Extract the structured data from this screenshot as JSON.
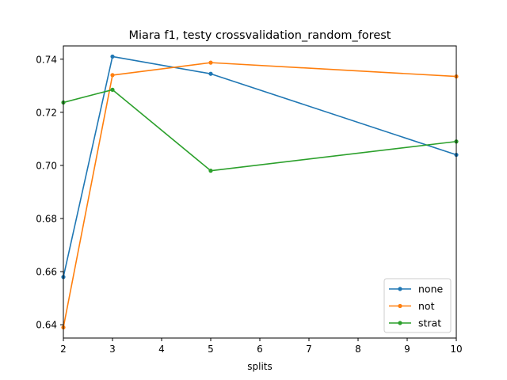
{
  "chart_data": {
    "type": "line",
    "title": "Miara f1, testy crossvalidation_random_forest",
    "xlabel": "splits",
    "ylabel": "",
    "xlim": [
      2,
      10
    ],
    "ylim": [
      0.635,
      0.745
    ],
    "xticks": [
      2,
      3,
      4,
      5,
      6,
      7,
      8,
      9,
      10
    ],
    "yticks": [
      0.64,
      0.66,
      0.68,
      0.7,
      0.72,
      0.74
    ],
    "ytick_labels": [
      "0.64",
      "0.66",
      "0.68",
      "0.70",
      "0.72",
      "0.74"
    ],
    "x": [
      2,
      3,
      5,
      10
    ],
    "legend_position": "lower-right",
    "grid": false,
    "series": [
      {
        "name": "none",
        "color": "#1f77b4",
        "values": [
          0.658,
          0.741,
          0.7345,
          0.704
        ]
      },
      {
        "name": "not",
        "color": "#ff7f0e",
        "values": [
          0.639,
          0.734,
          0.7387,
          0.7335
        ]
      },
      {
        "name": "strat",
        "color": "#2ca02c",
        "values": [
          0.7237,
          0.7285,
          0.698,
          0.709
        ]
      }
    ]
  }
}
